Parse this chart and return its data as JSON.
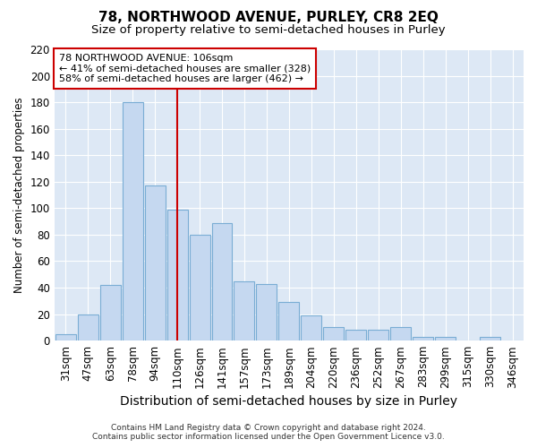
{
  "title": "78, NORTHWOOD AVENUE, PURLEY, CR8 2EQ",
  "subtitle": "Size of property relative to semi-detached houses in Purley",
  "xlabel": "Distribution of semi-detached houses by size in Purley",
  "ylabel": "Number of semi-detached properties",
  "categories": [
    "31sqm",
    "47sqm",
    "63sqm",
    "78sqm",
    "94sqm",
    "110sqm",
    "126sqm",
    "141sqm",
    "157sqm",
    "173sqm",
    "189sqm",
    "204sqm",
    "220sqm",
    "236sqm",
    "252sqm",
    "267sqm",
    "283sqm",
    "299sqm",
    "315sqm",
    "330sqm",
    "346sqm"
  ],
  "values": [
    5,
    20,
    42,
    180,
    117,
    99,
    80,
    89,
    45,
    43,
    29,
    19,
    10,
    8,
    8,
    10,
    3,
    3,
    0,
    3,
    0
  ],
  "bar_color": "#c5d8f0",
  "bar_edge_color": "#7aadd4",
  "vline_x": 5,
  "vline_color": "#cc0000",
  "annotation_text": "78 NORTHWOOD AVENUE: 106sqm\n← 41% of semi-detached houses are smaller (328)\n58% of semi-detached houses are larger (462) →",
  "annotation_box_color": "#cc0000",
  "ylim": [
    0,
    220
  ],
  "yticks": [
    0,
    20,
    40,
    60,
    80,
    100,
    120,
    140,
    160,
    180,
    200,
    220
  ],
  "fig_bg_color": "#ffffff",
  "plot_bg_color": "#dde8f5",
  "grid_color": "#ffffff",
  "footer_line1": "Contains HM Land Registry data © Crown copyright and database right 2024.",
  "footer_line2": "Contains public sector information licensed under the Open Government Licence v3.0.",
  "title_fontsize": 11,
  "subtitle_fontsize": 9.5,
  "xlabel_fontsize": 10,
  "ylabel_fontsize": 8.5,
  "tick_fontsize": 8.5,
  "footer_fontsize": 6.5
}
